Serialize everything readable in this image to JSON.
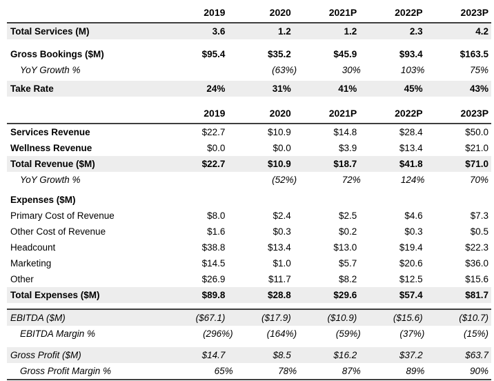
{
  "colors": {
    "row_shade": "#ededed",
    "rule": "#3e3e3e",
    "text": "#000000",
    "background": "#ffffff"
  },
  "years": [
    "2019",
    "2020",
    "2021P",
    "2022P",
    "2023P"
  ],
  "sections": [
    {
      "name": "bookings",
      "header": true,
      "rows": [
        {
          "label": "Total Services (M)",
          "values": [
            "3.6",
            "1.2",
            "1.2",
            "2.3",
            "4.2"
          ],
          "bold": true,
          "shaded": true
        },
        {
          "spacer": 10
        },
        {
          "label": "Gross Bookings ($M)",
          "values": [
            "$95.4",
            "$35.2",
            "$45.9",
            "$93.4",
            "$163.5"
          ],
          "bold": true
        },
        {
          "label": "YoY Growth %",
          "values": [
            "",
            "(63%)",
            "30%",
            "103%",
            "75%"
          ],
          "italic": true,
          "indent": true
        },
        {
          "spacer": 4
        },
        {
          "label": "Take Rate",
          "values": [
            "24%",
            "31%",
            "41%",
            "45%",
            "43%"
          ],
          "bold": true,
          "shaded": true
        }
      ]
    },
    {
      "name": "revenue-expenses",
      "header": true,
      "rows": [
        {
          "label": "Services Revenue",
          "values": [
            "$22.7",
            "$10.9",
            "$14.8",
            "$28.4",
            "$50.0"
          ],
          "bold_label": true
        },
        {
          "label": "Wellness Revenue",
          "values": [
            "$0.0",
            "$0.0",
            "$3.9",
            "$13.4",
            "$21.0"
          ],
          "bold_label": true
        },
        {
          "label": "Total Revenue ($M)",
          "values": [
            "$22.7",
            "$10.9",
            "$18.7",
            "$41.8",
            "$71.0"
          ],
          "bold": true,
          "shaded": true
        },
        {
          "label": "YoY Growth %",
          "values": [
            "",
            "(52%)",
            "72%",
            "124%",
            "70%"
          ],
          "italic": true,
          "indent": true
        },
        {
          "spacer": 6
        },
        {
          "label": "Expenses ($M)",
          "values": [
            "",
            "",
            "",
            "",
            ""
          ],
          "bold": true
        },
        {
          "label": "Primary Cost of Revenue",
          "values": [
            "$8.0",
            "$2.4",
            "$2.5",
            "$4.6",
            "$7.3"
          ]
        },
        {
          "label": "Other Cost of Revenue",
          "values": [
            "$1.6",
            "$0.3",
            "$0.2",
            "$0.3",
            "$0.5"
          ]
        },
        {
          "label": "Headcount",
          "values": [
            "$38.8",
            "$13.4",
            "$13.0",
            "$19.4",
            "$22.3"
          ]
        },
        {
          "label": "Marketing",
          "values": [
            "$14.5",
            "$1.0",
            "$5.7",
            "$20.6",
            "$36.0"
          ]
        },
        {
          "label": "Other",
          "values": [
            "$26.9",
            "$11.7",
            "$8.2",
            "$12.5",
            "$15.6"
          ]
        },
        {
          "label": "Total Expenses ($M)",
          "values": [
            "$89.8",
            "$28.8",
            "$29.6",
            "$57.4",
            "$81.7"
          ],
          "bold": true,
          "shaded": true
        }
      ]
    },
    {
      "name": "profitability",
      "header": false,
      "top_border": true,
      "bottom_border": true,
      "rows": [
        {
          "label": "EBITDA ($M)",
          "values": [
            "($67.1)",
            "($17.9)",
            "($10.9)",
            "($15.6)",
            "($10.7)"
          ],
          "italic": true,
          "shaded": true
        },
        {
          "label": "EBITDA Margin %",
          "values": [
            "(296%)",
            "(164%)",
            "(59%)",
            "(37%)",
            "(15%)"
          ],
          "italic": true,
          "indent": true
        },
        {
          "spacer": 8
        },
        {
          "label": "Gross Profit ($M)",
          "values": [
            "$14.7",
            "$8.5",
            "$16.2",
            "$37.2",
            "$63.7"
          ],
          "italic": true,
          "shaded": true
        },
        {
          "label": "Gross Profit Margin %",
          "values": [
            "65%",
            "78%",
            "87%",
            "89%",
            "90%"
          ],
          "italic": true,
          "indent": true
        }
      ]
    }
  ]
}
